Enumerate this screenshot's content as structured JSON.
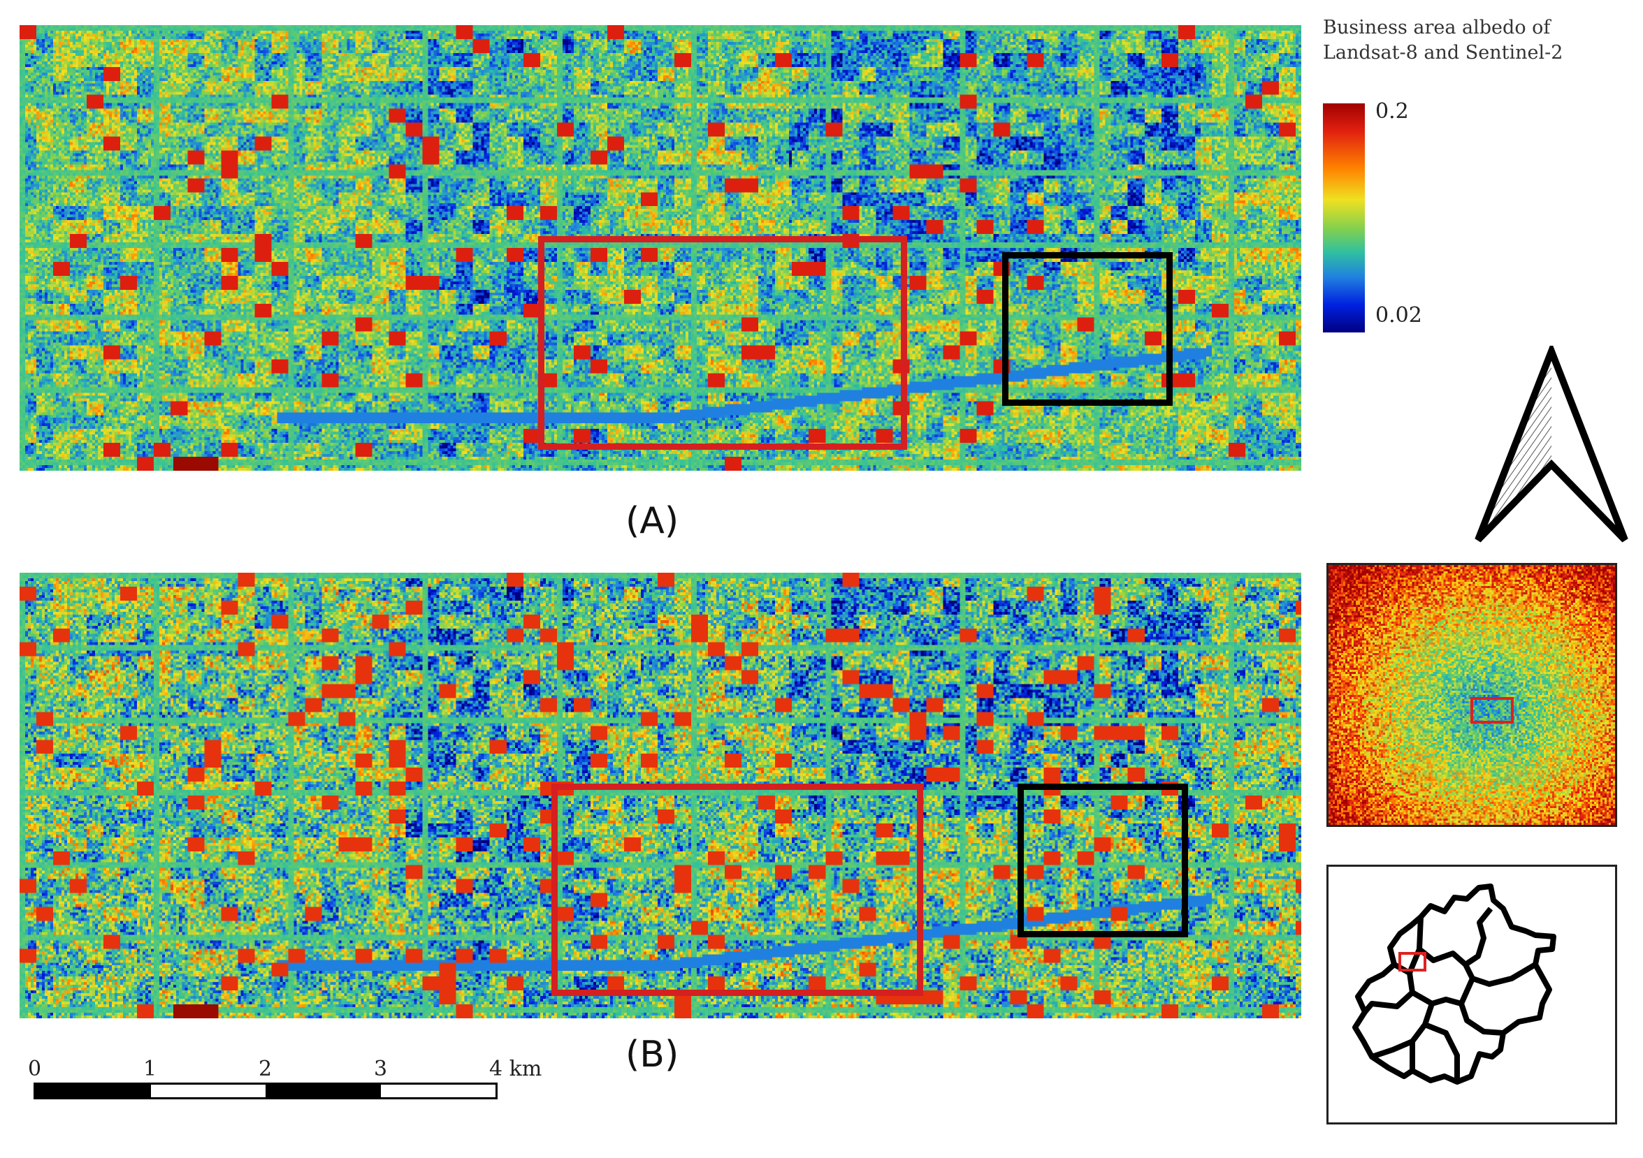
{
  "legend": {
    "title_line1": "Business area albedo of",
    "title_line2": "Landsat-8 and Sentinel-2",
    "max_label": "0.2",
    "min_label": "0.02",
    "range": [
      0.02,
      0.2
    ]
  },
  "panels": [
    {
      "label": "(A)",
      "description": "Landsat-8 albedo"
    },
    {
      "label": "(B)",
      "description": "Sentinel-2 albedo"
    }
  ],
  "scale_bar": {
    "ticks": [
      "0",
      "1",
      "2",
      "3",
      "4"
    ],
    "unit": "km"
  },
  "colors": {
    "study_box_red": "#d42020",
    "study_box_black": "#000000",
    "colormap": [
      "#000080",
      "#0020e0",
      "#2080e0",
      "#30c0a0",
      "#80d050",
      "#f0e020",
      "#ff8000",
      "#e02010",
      "#a00000"
    ]
  },
  "icons": {
    "north_arrow": "north-arrow-icon",
    "locator": "beijing-district-map"
  }
}
